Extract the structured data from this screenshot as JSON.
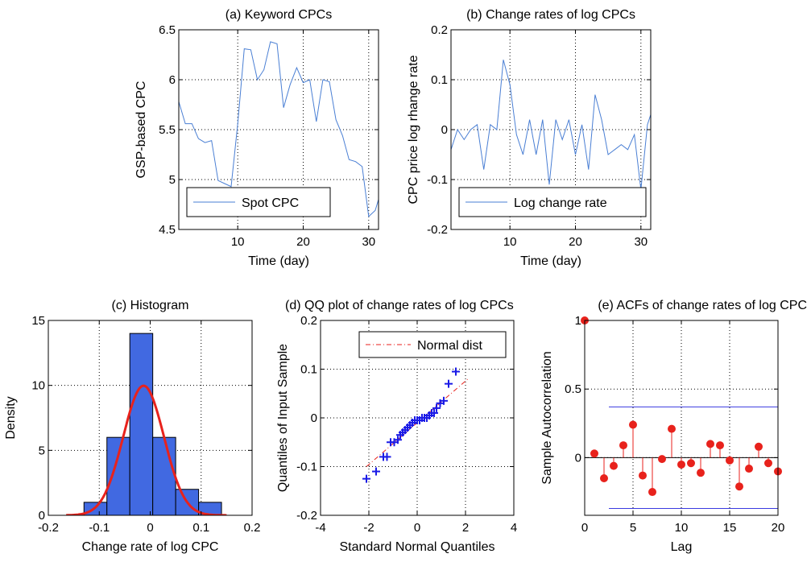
{
  "chart_data": [
    {
      "id": "a",
      "type": "line",
      "title": "(a) Keyword CPCs",
      "xlabel": "Time (day)",
      "ylabel": "GSP-based CPC",
      "xlim": [
        1,
        31.5
      ],
      "ylim": [
        4.5,
        6.5
      ],
      "xticks": [
        10,
        20,
        30
      ],
      "yticks": [
        4.5,
        5,
        5.5,
        6,
        6.5
      ],
      "ytick_labels": [
        "4.5",
        "5",
        "5.5",
        "6",
        "6.5"
      ],
      "grid": true,
      "legend_position": "lower-left",
      "color": "#4a7fd4",
      "series": [
        {
          "name": "Spot CPC",
          "x": [
            1,
            2,
            3,
            4,
            5,
            6,
            7,
            8,
            9,
            10,
            11,
            12,
            13,
            14,
            15,
            16,
            17,
            18,
            19,
            20,
            21,
            22,
            23,
            24,
            25,
            26,
            27,
            28,
            29,
            30,
            31,
            31.5
          ],
          "y": [
            5.78,
            5.56,
            5.56,
            5.41,
            5.37,
            5.39,
            4.99,
            4.96,
            4.93,
            5.56,
            6.31,
            6.3,
            6.0,
            6.1,
            6.38,
            6.36,
            5.72,
            5.95,
            6.12,
            5.97,
            6.0,
            5.58,
            6.0,
            5.98,
            5.6,
            5.44,
            5.2,
            5.18,
            5.13,
            4.63,
            4.69,
            4.8
          ]
        }
      ]
    },
    {
      "id": "b",
      "type": "line",
      "title": "(b) Change rates of log CPCs",
      "xlabel": "Time (day)",
      "ylabel": "CPC price log rhange rate",
      "xlim": [
        1,
        31.5
      ],
      "ylim": [
        -0.2,
        0.2
      ],
      "xticks": [
        10,
        20,
        30
      ],
      "yticks": [
        -0.2,
        -0.1,
        0,
        0.1,
        0.2
      ],
      "ytick_labels": [
        "-0.2",
        "-0.1",
        "0",
        "0.1",
        "0.2"
      ],
      "grid": true,
      "legend_position": "lower-left",
      "color": "#4a7fd4",
      "series": [
        {
          "name": "Log change rate",
          "x": [
            1,
            2,
            3,
            4,
            5,
            6,
            7,
            8,
            9,
            10,
            11,
            12,
            13,
            14,
            15,
            16,
            17,
            18,
            19,
            20,
            21,
            22,
            23,
            24,
            25,
            26,
            27,
            28,
            29,
            30,
            31,
            31.5
          ],
          "y": [
            -0.04,
            0.0,
            -0.02,
            0.0,
            0.01,
            -0.08,
            0.01,
            0.0,
            0.14,
            0.09,
            -0.01,
            -0.05,
            0.02,
            -0.05,
            0.02,
            -0.11,
            0.02,
            -0.02,
            0.02,
            -0.05,
            0.01,
            -0.08,
            0.07,
            0.02,
            -0.05,
            -0.04,
            -0.03,
            -0.04,
            -0.01,
            -0.12,
            0.01,
            0.03
          ]
        }
      ]
    },
    {
      "id": "c",
      "type": "bar",
      "title": "(c) Histogram",
      "xlabel": "Change rate of log CPC",
      "ylabel": "Density",
      "xlim": [
        -0.2,
        0.2
      ],
      "ylim": [
        0,
        15
      ],
      "xticks": [
        -0.2,
        -0.1,
        0,
        0.1,
        0.2
      ],
      "xtick_labels": [
        "-0.2",
        "-0.1",
        "0",
        "0.1",
        "0.2"
      ],
      "yticks": [
        0,
        5,
        10,
        15
      ],
      "ytick_labels": [
        "0",
        "5",
        "10",
        "15"
      ],
      "grid": true,
      "bar_color": "#4169e1",
      "curve_color": "#e8221c",
      "bins": [
        {
          "left": -0.13,
          "right": -0.085,
          "value": 1
        },
        {
          "left": -0.085,
          "right": -0.04,
          "value": 6
        },
        {
          "left": -0.04,
          "right": 0.005,
          "value": 14
        },
        {
          "left": 0.005,
          "right": 0.05,
          "value": 6
        },
        {
          "left": 0.05,
          "right": 0.095,
          "value": 2
        },
        {
          "left": 0.095,
          "right": 0.14,
          "value": 1
        }
      ],
      "normal_curve": {
        "mean": -0.013,
        "std": 0.04
      }
    },
    {
      "id": "d",
      "type": "scatter",
      "title": "(d) QQ plot of change rates of log CPCs",
      "xlabel": "Standard Normal Quantiles",
      "ylabel": "Quantiles of Input Sample",
      "xlim": [
        -4,
        4
      ],
      "ylim": [
        -0.2,
        0.2
      ],
      "xticks": [
        -4,
        -2,
        0,
        2,
        4
      ],
      "xtick_labels": [
        "-4",
        "-2",
        "0",
        "2",
        "4"
      ],
      "yticks": [
        -0.2,
        -0.1,
        0,
        0.1,
        0.2
      ],
      "ytick_labels": [
        "-0.2",
        "-0.1",
        "0",
        "0.1",
        "0.2"
      ],
      "grid": true,
      "legend_position": "top-right",
      "marker_color": "#1a1ae6",
      "line_color": "#e8221c",
      "series": [
        {
          "name": "",
          "x": [
            -2.1,
            -1.7,
            -1.4,
            -1.25,
            -1.1,
            -0.95,
            -0.8,
            -0.7,
            -0.6,
            -0.5,
            -0.4,
            -0.3,
            -0.2,
            -0.1,
            0.0,
            0.1,
            0.2,
            0.3,
            0.4,
            0.5,
            0.6,
            0.7,
            0.8,
            0.95,
            1.1,
            1.3,
            1.6
          ],
          "y": [
            -0.125,
            -0.11,
            -0.08,
            -0.08,
            -0.05,
            -0.05,
            -0.045,
            -0.035,
            -0.03,
            -0.025,
            -0.02,
            -0.015,
            -0.01,
            -0.005,
            -0.005,
            -0.005,
            0.0,
            0.0,
            0.0,
            0.005,
            0.01,
            0.01,
            0.02,
            0.03,
            0.035,
            0.07,
            0.095
          ]
        }
      ],
      "reference_line": {
        "name": "Normal dist",
        "x": [
          -2.1,
          2.1
        ],
        "y": [
          -0.1,
          0.08
        ]
      }
    },
    {
      "id": "e",
      "type": "stem",
      "title": "(e) ACFs of change rates of log CPC",
      "xlabel": "Lag",
      "ylabel": "Sample Autocorrelation",
      "xlim": [
        0,
        20
      ],
      "ylim": [
        -0.42,
        1.0
      ],
      "xticks": [
        0,
        5,
        10,
        15,
        20
      ],
      "xtick_labels": [
        "0",
        "5",
        "10",
        "15",
        "20"
      ],
      "yticks": [
        0,
        0.5,
        1
      ],
      "ytick_labels": [
        "0",
        "0.5",
        "1"
      ],
      "grid": true,
      "stem_color": "#e8221c",
      "bound_color": "#3a3ae0",
      "bounds": [
        0.37,
        -0.37
      ],
      "bounds_x_start": 2.5,
      "lags": [
        0,
        1,
        2,
        3,
        4,
        5,
        6,
        7,
        8,
        9,
        10,
        11,
        12,
        13,
        14,
        15,
        16,
        17,
        18,
        19,
        20
      ],
      "values": [
        1.0,
        0.03,
        -0.15,
        -0.06,
        0.09,
        0.24,
        -0.13,
        -0.25,
        -0.01,
        0.21,
        -0.05,
        -0.04,
        -0.11,
        0.1,
        0.09,
        -0.02,
        -0.21,
        -0.08,
        0.08,
        -0.04,
        -0.1
      ]
    }
  ]
}
